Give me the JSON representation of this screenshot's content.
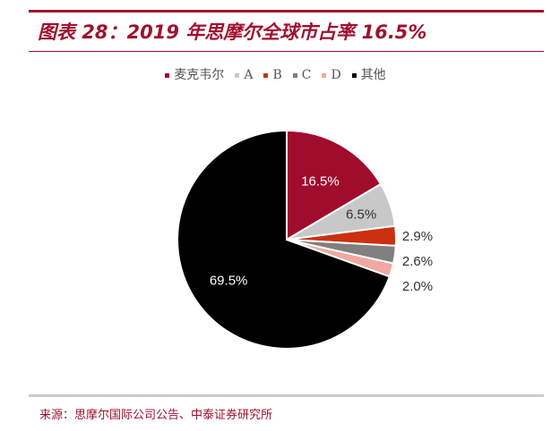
{
  "title": "图表 28：2019 年思摩尔全球市占率 16.5%",
  "source": "来源：思摩尔国际公司公告、中泰证券研究所",
  "chart_data": {
    "type": "pie",
    "title": "",
    "legend_position": "top",
    "start_angle": "12 o'clock, clockwise",
    "slices": [
      {
        "name": "麦克韦尔",
        "value": 16.5,
        "label": "16.5%",
        "color": "#a00c2c"
      },
      {
        "name": "A",
        "value": 6.5,
        "label": "6.5%",
        "color": "#c8c8c8"
      },
      {
        "name": "B",
        "value": 2.9,
        "label": "2.9%",
        "color": "#cc3010"
      },
      {
        "name": "C",
        "value": 2.6,
        "label": "2.6%",
        "color": "#808080"
      },
      {
        "name": "D",
        "value": 2.0,
        "label": "2.0%",
        "color": "#f0a8a0"
      },
      {
        "name": "其他",
        "value": 69.5,
        "label": "69.5%",
        "color": "#000000"
      }
    ]
  }
}
